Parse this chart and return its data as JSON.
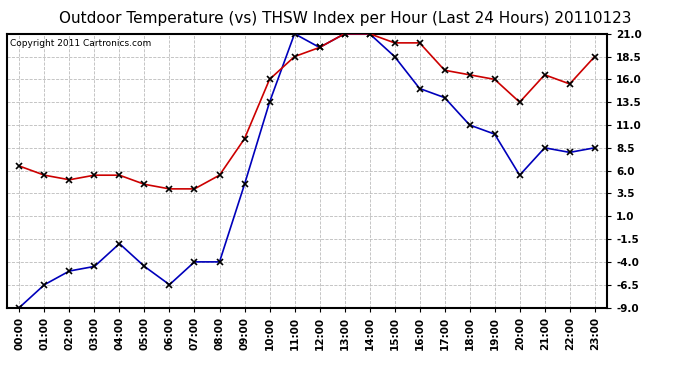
{
  "title": "Outdoor Temperature (vs) THSW Index per Hour (Last 24 Hours) 20110123",
  "copyright": "Copyright 2011 Cartronics.com",
  "hours": [
    "00:00",
    "01:00",
    "02:00",
    "03:00",
    "04:00",
    "05:00",
    "06:00",
    "07:00",
    "08:00",
    "09:00",
    "10:00",
    "11:00",
    "12:00",
    "13:00",
    "14:00",
    "15:00",
    "16:00",
    "17:00",
    "18:00",
    "19:00",
    "20:00",
    "21:00",
    "22:00",
    "23:00"
  ],
  "temp_blue": [
    -9.0,
    -6.5,
    -5.0,
    -4.5,
    -2.0,
    -4.5,
    -6.5,
    -4.0,
    -4.0,
    4.5,
    13.5,
    21.0,
    19.5,
    21.0,
    21.0,
    18.5,
    15.0,
    14.0,
    11.0,
    10.0,
    5.5,
    8.5,
    8.0,
    8.5
  ],
  "thsw_red": [
    6.5,
    5.5,
    5.0,
    5.5,
    5.5,
    4.5,
    4.0,
    4.0,
    5.5,
    9.5,
    16.0,
    18.5,
    19.5,
    21.0,
    21.0,
    20.0,
    20.0,
    17.0,
    16.5,
    16.0,
    13.5,
    16.5,
    15.5,
    18.5
  ],
  "ylim": [
    -9.0,
    21.0
  ],
  "yticks": [
    -9.0,
    -6.5,
    -4.0,
    -1.5,
    1.0,
    3.5,
    6.0,
    8.5,
    11.0,
    13.5,
    16.0,
    18.5,
    21.0
  ],
  "bg_color": "#ffffff",
  "grid_color": "#bbbbbb",
  "blue_color": "#0000bb",
  "red_color": "#cc0000",
  "title_fontsize": 11,
  "copyright_fontsize": 6.5,
  "tick_fontsize": 7.5
}
